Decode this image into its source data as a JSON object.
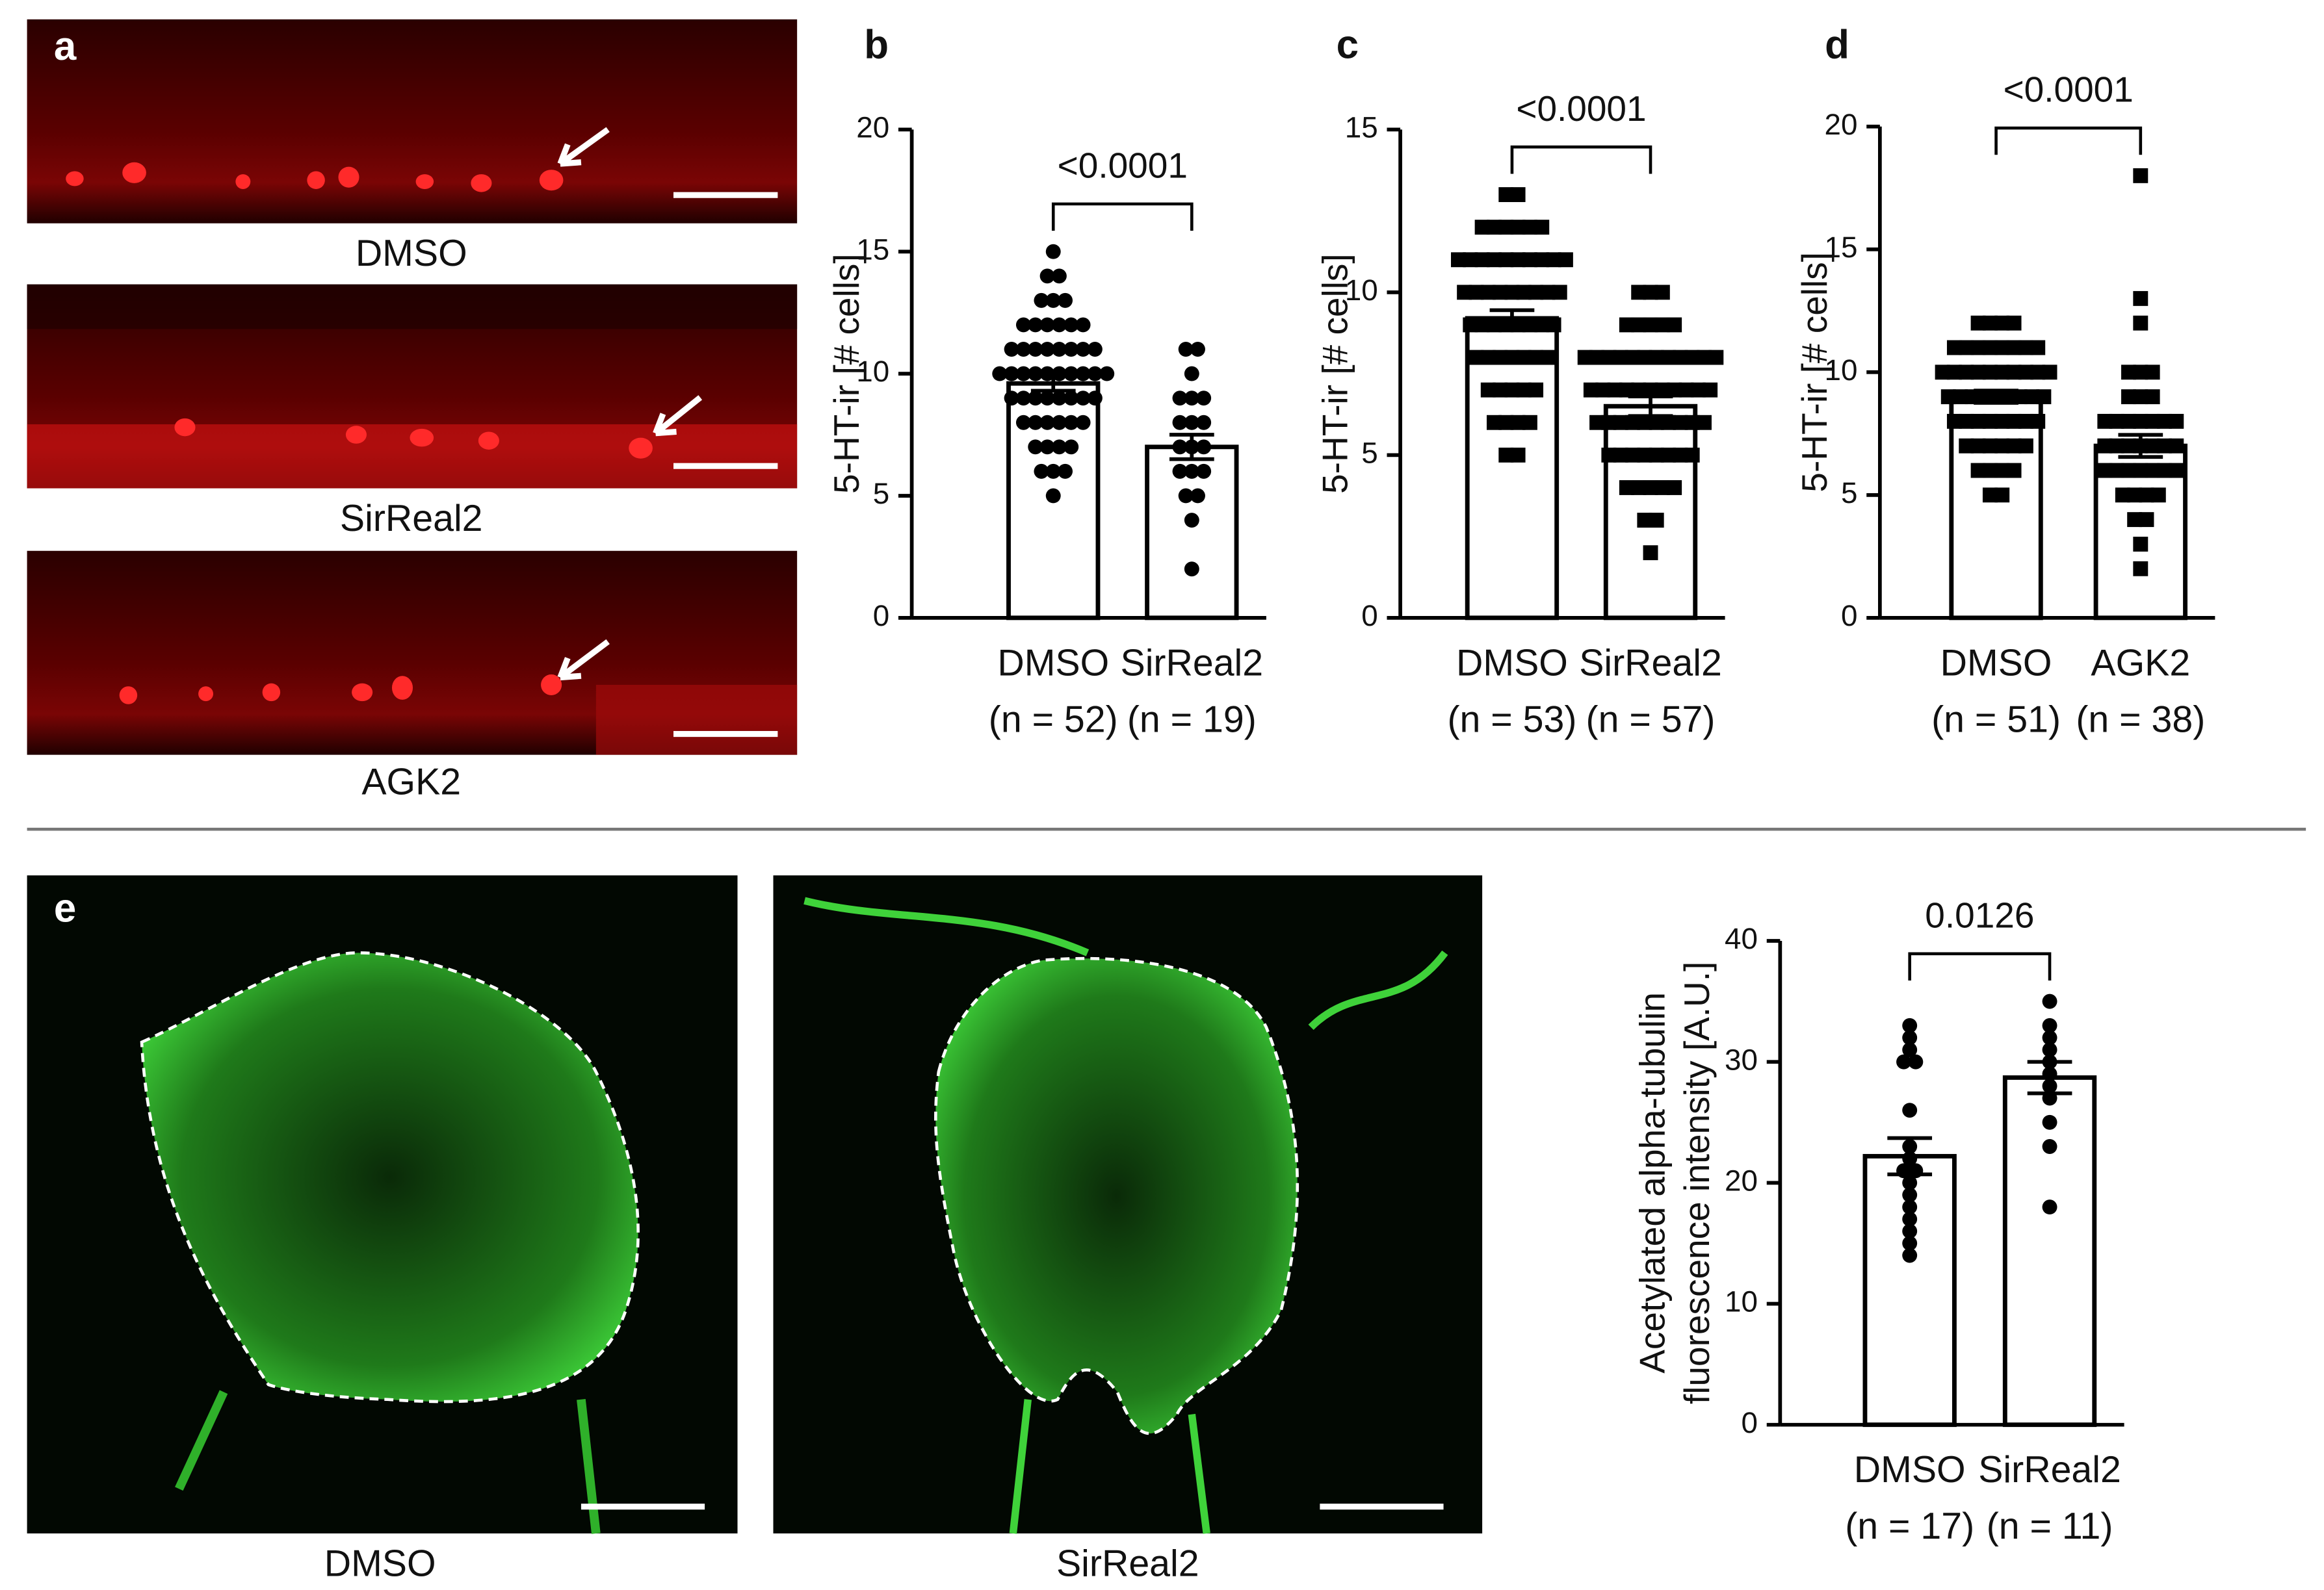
{
  "images": [
    {
      "panel": "a",
      "labels": [
        "DMSO",
        "SirReal2",
        "AGK2"
      ]
    },
    {
      "panel": "e",
      "labels": [
        "DMSO",
        "SirReal2"
      ]
    }
  ],
  "chart_data": [
    {
      "type": "bar",
      "panel": "b",
      "ylabel": "5-HT-ir [# cells]",
      "categories": [
        "DMSO",
        "SirReal2"
      ],
      "sample_sizes": [
        "(n = 52)",
        "(n = 19)"
      ],
      "values": [
        9.6,
        7.0
      ],
      "errors": [
        0.3,
        0.5
      ],
      "marker": "circle",
      "annotation": "<0.0001",
      "points": [
        [
          5,
          6,
          6,
          6,
          7,
          7,
          7,
          7,
          8,
          8,
          8,
          8,
          8,
          8,
          9,
          9,
          9,
          9,
          9,
          9,
          9,
          9,
          10,
          10,
          10,
          10,
          10,
          10,
          10,
          10,
          10,
          10,
          11,
          11,
          11,
          11,
          11,
          11,
          11,
          11,
          12,
          12,
          12,
          12,
          12,
          12,
          13,
          13,
          13,
          14,
          14,
          15
        ],
        [
          2,
          4,
          5,
          5,
          6,
          6,
          6,
          7,
          7,
          7,
          8,
          8,
          8,
          9,
          9,
          9,
          10,
          11,
          11
        ]
      ],
      "ylim": [
        0,
        20
      ],
      "yticks": [
        0,
        5,
        10,
        15,
        20
      ]
    },
    {
      "type": "bar",
      "panel": "c",
      "ylabel": "5-HT-ir [# cells]",
      "categories": [
        "DMSO",
        "SirReal2"
      ],
      "sample_sizes": [
        "(n = 53)",
        "(n = 57)"
      ],
      "values": [
        9.2,
        6.5
      ],
      "errors": [
        0.25,
        0.3
      ],
      "marker": "square",
      "annotation": "<0.0001",
      "points": [
        [
          5,
          5,
          6,
          6,
          6,
          6,
          7,
          7,
          7,
          7,
          7,
          8,
          8,
          8,
          8,
          8,
          8,
          8,
          9,
          9,
          9,
          9,
          9,
          9,
          9,
          9,
          10,
          10,
          10,
          10,
          10,
          10,
          10,
          10,
          10,
          11,
          11,
          11,
          11,
          11,
          11,
          11,
          11,
          11,
          11,
          12,
          12,
          12,
          12,
          12,
          12,
          13,
          13
        ],
        [
          2,
          3,
          3,
          4,
          4,
          4,
          4,
          4,
          5,
          5,
          5,
          5,
          5,
          5,
          5,
          5,
          6,
          6,
          6,
          6,
          6,
          6,
          6,
          6,
          6,
          6,
          7,
          7,
          7,
          7,
          7,
          7,
          7,
          7,
          7,
          7,
          7,
          8,
          8,
          8,
          8,
          8,
          8,
          8,
          8,
          8,
          8,
          8,
          8,
          9,
          9,
          9,
          9,
          9,
          10,
          10,
          10
        ]
      ],
      "ylim": [
        0,
        15
      ],
      "yticks": [
        0,
        5,
        10,
        15
      ]
    },
    {
      "type": "bar",
      "panel": "d",
      "ylabel": "5-HT-ir [# cells]",
      "categories": [
        "DMSO",
        "AGK2"
      ],
      "sample_sizes": [
        "(n = 51)",
        "(n = 38)"
      ],
      "values": [
        9.0,
        7.0
      ],
      "errors": [
        0.25,
        0.45
      ],
      "marker": "square",
      "annotation": "<0.0001",
      "points": [
        [
          5,
          5,
          6,
          6,
          6,
          6,
          7,
          7,
          7,
          7,
          7,
          7,
          8,
          8,
          8,
          8,
          8,
          8,
          8,
          8,
          9,
          9,
          9,
          9,
          9,
          9,
          9,
          9,
          9,
          10,
          10,
          10,
          10,
          10,
          10,
          10,
          10,
          10,
          10,
          11,
          11,
          11,
          11,
          11,
          11,
          11,
          11,
          12,
          12,
          12,
          12
        ],
        [
          2,
          3,
          4,
          4,
          5,
          5,
          5,
          5,
          6,
          6,
          6,
          6,
          6,
          6,
          6,
          7,
          7,
          7,
          7,
          7,
          7,
          7,
          8,
          8,
          8,
          8,
          8,
          8,
          8,
          9,
          9,
          9,
          10,
          10,
          10,
          12,
          13,
          18
        ]
      ],
      "ylim": [
        0,
        20
      ],
      "yticks": [
        0,
        5,
        10,
        15,
        20
      ]
    },
    {
      "type": "bar",
      "panel": "",
      "ylabel": [
        "Acetylated alpha-tubulin",
        "fluorescence intensity [A.U.]"
      ],
      "categories": [
        "DMSO",
        "SirReal2"
      ],
      "sample_sizes": [
        "(n = 17)",
        "(n = 11)"
      ],
      "values": [
        22.2,
        28.7
      ],
      "errors": [
        1.5,
        1.3
      ],
      "marker": "circle",
      "annotation": "0.0126",
      "points": [
        [
          14,
          15,
          16,
          17,
          18,
          19,
          20,
          21,
          21,
          22,
          23,
          26,
          30,
          30,
          31,
          32,
          33
        ],
        [
          18,
          23,
          25,
          27,
          28,
          29,
          30,
          31,
          32,
          33,
          35
        ]
      ],
      "ylim": [
        0,
        40
      ],
      "yticks": [
        0,
        10,
        20,
        30,
        40
      ]
    }
  ]
}
